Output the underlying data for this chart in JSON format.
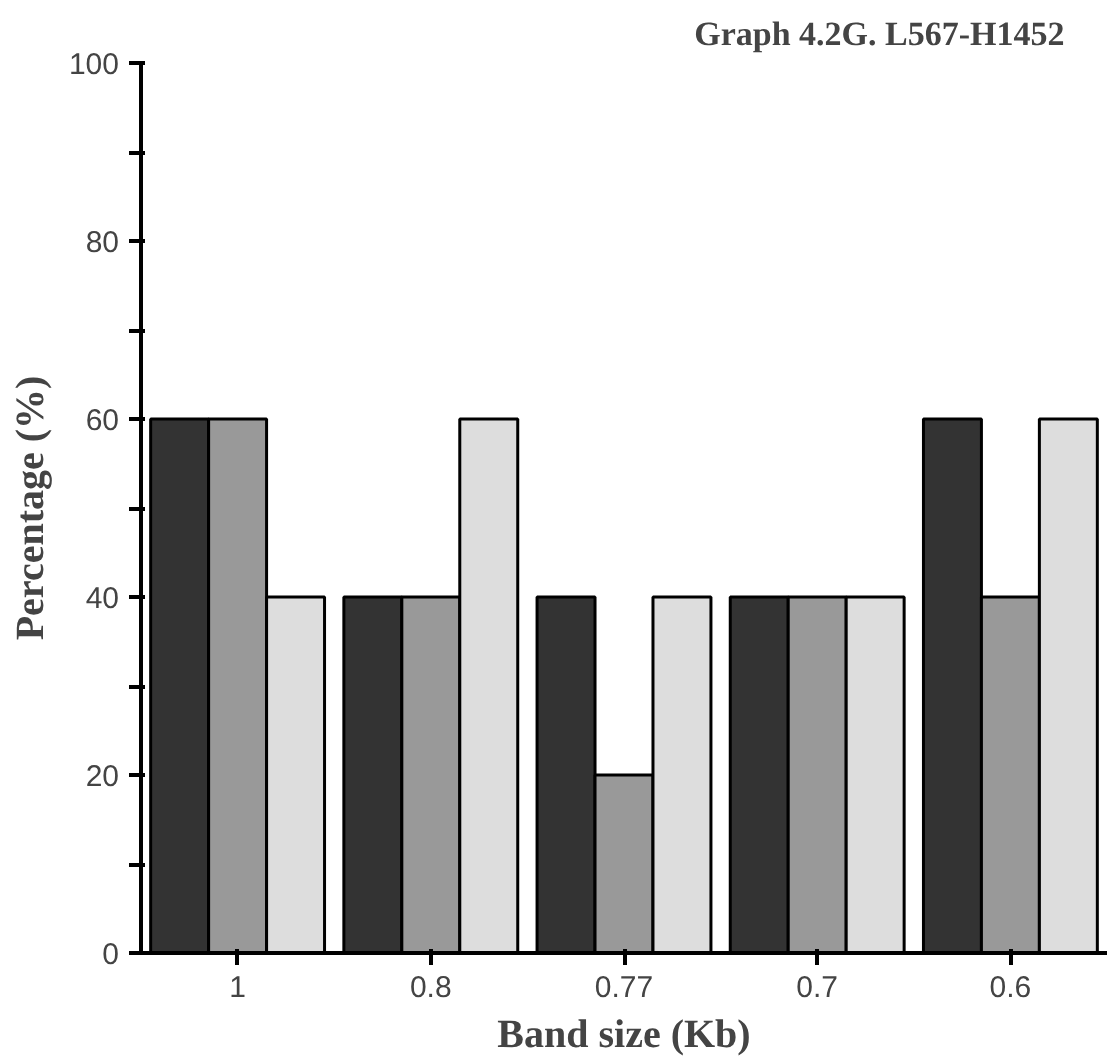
{
  "chart_data": {
    "type": "bar",
    "title": "Graph 4.2G.      L567-H1452",
    "xlabel": "Band size (Kb)",
    "ylabel": "Percentage (%)",
    "categories": [
      "1",
      "0.8",
      "0.77",
      "0.7",
      "0.6"
    ],
    "series": [
      {
        "color": "#333333",
        "values": [
          60,
          40,
          40,
          40,
          60
        ]
      },
      {
        "color": "#999999",
        "values": [
          60,
          40,
          20,
          40,
          40
        ]
      },
      {
        "color": "#dddddd",
        "values": [
          40,
          60,
          40,
          40,
          60
        ]
      }
    ],
    "ylim": [
      0,
      100
    ],
    "yticks": [
      0,
      {
        "value": 10,
        "label": null
      },
      20,
      {
        "value": 30,
        "label": null
      },
      40,
      {
        "value": 50,
        "label": null
      },
      60,
      {
        "value": 70,
        "label": null
      },
      80,
      {
        "value": 90,
        "label": null
      },
      100
    ],
    "grid": false
  }
}
